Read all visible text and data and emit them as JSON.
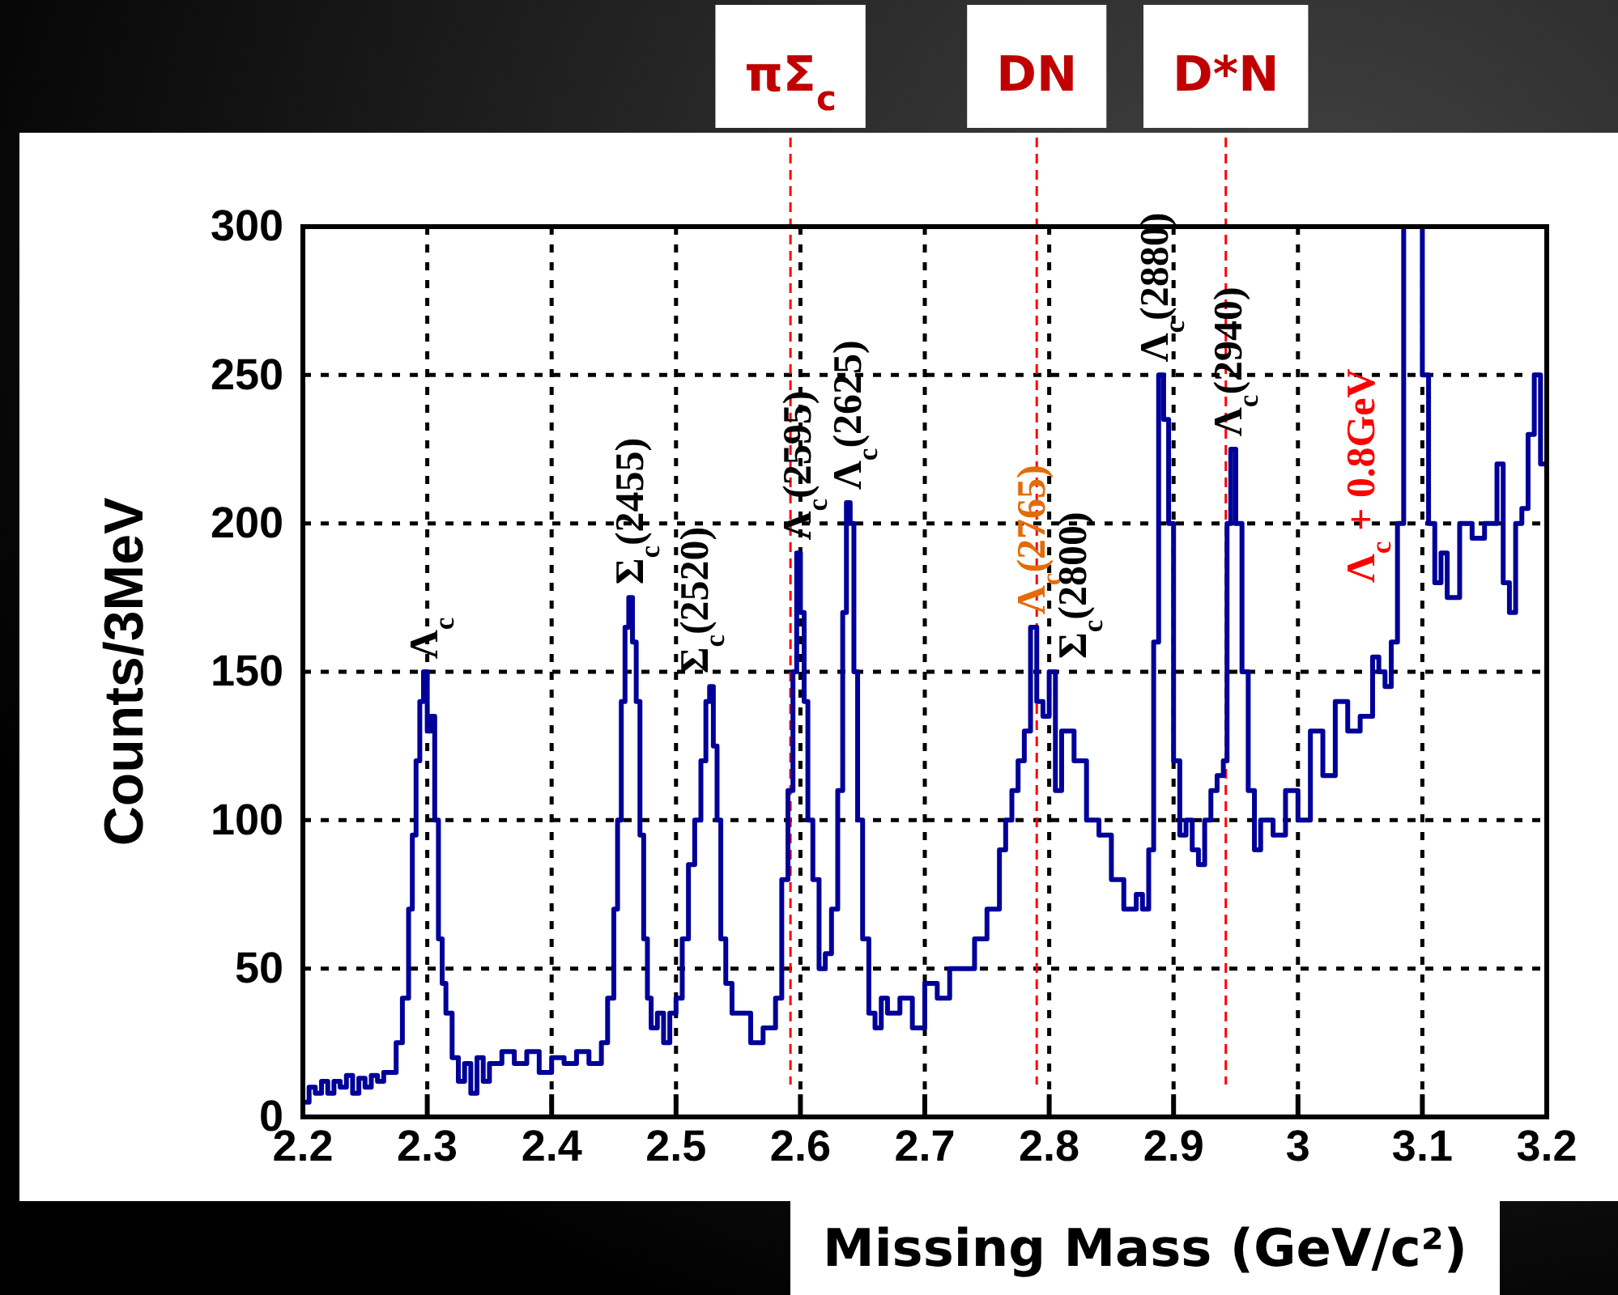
{
  "chart_data": {
    "type": "step",
    "xlabel": "Missing Mass (GeV/c²)",
    "ylabel": "Counts/3MeV",
    "xlim": [
      2.2,
      3.2
    ],
    "xticks": [
      2.2,
      2.3,
      2.4,
      2.5,
      2.6,
      2.7,
      2.8,
      2.9,
      3,
      3.1,
      3.2
    ],
    "ylim": [
      0,
      300
    ],
    "yticks": [
      0,
      50,
      100,
      150,
      200,
      250,
      300
    ],
    "grid": true,
    "line_style": "solid",
    "series": [
      {
        "color": "#000099",
        "x": [
          2.2,
          2.205,
          2.21,
          2.215,
          2.22,
          2.225,
          2.23,
          2.235,
          2.24,
          2.245,
          2.25,
          2.255,
          2.26,
          2.265,
          2.27,
          2.275,
          2.28,
          2.285,
          2.288,
          2.291,
          2.294,
          2.297,
          2.3,
          2.303,
          2.306,
          2.309,
          2.312,
          2.315,
          2.32,
          2.325,
          2.33,
          2.335,
          2.34,
          2.345,
          2.35,
          2.36,
          2.37,
          2.38,
          2.39,
          2.4,
          2.41,
          2.42,
          2.43,
          2.44,
          2.445,
          2.45,
          2.453,
          2.456,
          2.459,
          2.462,
          2.465,
          2.468,
          2.471,
          2.474,
          2.477,
          2.48,
          2.485,
          2.49,
          2.495,
          2.5,
          2.505,
          2.51,
          2.515,
          2.52,
          2.524,
          2.527,
          2.53,
          2.533,
          2.536,
          2.54,
          2.545,
          2.55,
          2.56,
          2.57,
          2.58,
          2.585,
          2.59,
          2.594,
          2.597,
          2.6,
          2.603,
          2.606,
          2.61,
          2.615,
          2.62,
          2.625,
          2.63,
          2.634,
          2.637,
          2.64,
          2.643,
          2.646,
          2.65,
          2.655,
          2.66,
          2.665,
          2.67,
          2.68,
          2.69,
          2.7,
          2.71,
          2.72,
          2.73,
          2.74,
          2.75,
          2.76,
          2.765,
          2.77,
          2.775,
          2.78,
          2.785,
          2.79,
          2.795,
          2.8,
          2.805,
          2.81,
          2.82,
          2.83,
          2.84,
          2.85,
          2.86,
          2.87,
          2.875,
          2.88,
          2.884,
          2.888,
          2.892,
          2.896,
          2.9,
          2.905,
          2.91,
          2.915,
          2.92,
          2.925,
          2.93,
          2.935,
          2.94,
          2.943,
          2.946,
          2.95,
          2.955,
          2.96,
          2.965,
          2.97,
          2.98,
          2.99,
          3,
          3.01,
          3.02,
          3.03,
          3.04,
          3.05,
          3.06,
          3.065,
          3.07,
          3.075,
          3.08,
          3.085,
          3.09,
          3.095,
          3.1,
          3.105,
          3.11,
          3.115,
          3.12,
          3.13,
          3.14,
          3.15,
          3.16,
          3.165,
          3.17,
          3.175,
          3.18,
          3.185,
          3.19,
          3.195,
          3.2
        ],
        "values": [
          5,
          10,
          8,
          12,
          8,
          12,
          10,
          14,
          8,
          13,
          10,
          14,
          12,
          15,
          15,
          25,
          40,
          70,
          95,
          120,
          140,
          150,
          130,
          135,
          100,
          60,
          45,
          35,
          20,
          12,
          18,
          8,
          20,
          12,
          18,
          22,
          18,
          22,
          15,
          20,
          18,
          22,
          18,
          25,
          40,
          70,
          100,
          140,
          165,
          175,
          160,
          140,
          95,
          60,
          40,
          30,
          35,
          25,
          35,
          40,
          60,
          85,
          100,
          120,
          140,
          145,
          125,
          100,
          60,
          45,
          35,
          35,
          25,
          30,
          40,
          80,
          110,
          150,
          190,
          170,
          140,
          100,
          80,
          50,
          55,
          70,
          110,
          170,
          207,
          200,
          150,
          100,
          60,
          35,
          30,
          40,
          35,
          40,
          30,
          45,
          40,
          50,
          50,
          60,
          70,
          90,
          100,
          110,
          120,
          130,
          165,
          140,
          135,
          150,
          110,
          130,
          120,
          100,
          95,
          80,
          70,
          75,
          70,
          90,
          160,
          250,
          235,
          200,
          120,
          95,
          100,
          90,
          85,
          100,
          110,
          115,
          120,
          200,
          225,
          200,
          150,
          110,
          90,
          100,
          95,
          110,
          100,
          130,
          115,
          140,
          130,
          135,
          155,
          150,
          145,
          160,
          200,
          300,
          300,
          300,
          250,
          200,
          180,
          190,
          175,
          200,
          195,
          200,
          220,
          180,
          170,
          200,
          205,
          230,
          250,
          220,
          240
        ]
      }
    ],
    "ref_lines": [
      {
        "axis": "x",
        "value": 2.592,
        "label": "πΣ$_{c}$",
        "color": "#ff0000",
        "line_style": "dashed"
      },
      {
        "axis": "x",
        "value": 2.79,
        "label": "DN",
        "color": "#ff0000",
        "line_style": "dashed"
      },
      {
        "axis": "x",
        "value": 2.942,
        "label": "D*N",
        "color": "#ff0000",
        "line_style": "dashed"
      }
    ],
    "annotations": [
      {
        "text": "Λ$_{c}$",
        "x": 2.297,
        "y": 150
      },
      {
        "text": "Σ$_{c}$(2455)",
        "x": 2.462,
        "y": 175
      },
      {
        "text": "Σ$_{c}$(2520)",
        "x": 2.527,
        "y": 145
      },
      {
        "text": "Λ$_{c}$(2595)",
        "x": 2.597,
        "y": 190
      },
      {
        "text": "Λ$_{c}$(2625)",
        "x": 2.637,
        "y": 207
      },
      {
        "text": "Λ$_{c}$(2765)",
        "x": 2.785,
        "y": 165
      },
      {
        "text": "Σ$_{c}$(2800)",
        "x": 2.795,
        "y": 150
      },
      {
        "text": "Λ$_{c}$(2880)",
        "x": 2.884,
        "y": 250
      },
      {
        "text": "Λ$_{c}$(2940)",
        "x": 2.943,
        "y": 225
      },
      "Λ$_{c}$ + 0.8GeV"
    ]
  }
}
